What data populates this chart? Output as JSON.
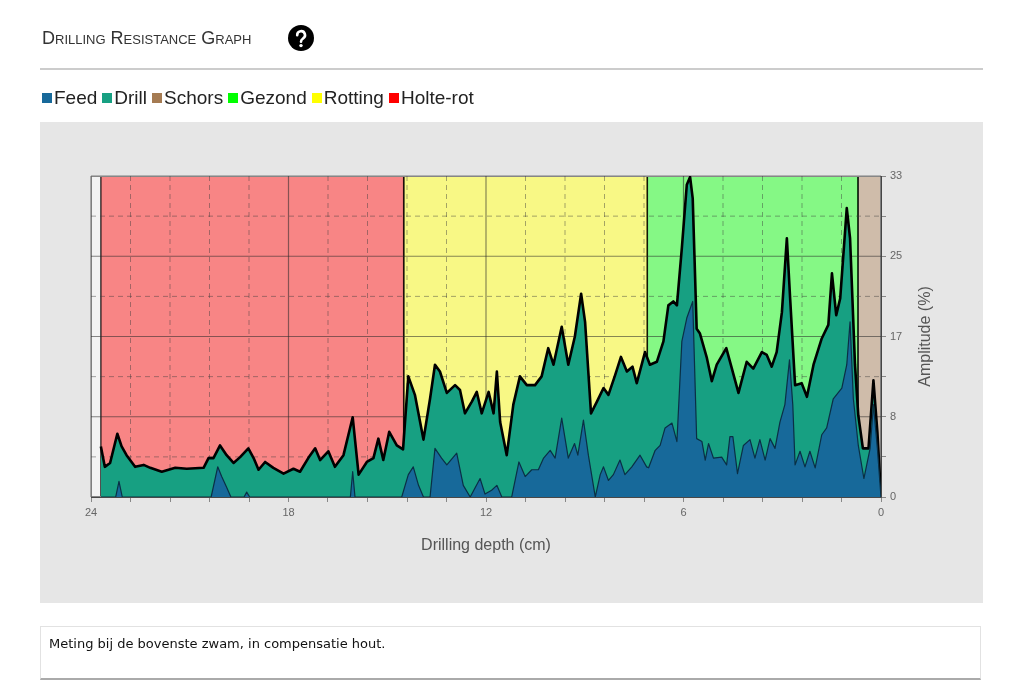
{
  "chart_data": {
    "type": "area",
    "title": "Drilling Resistance Graph",
    "xlabel": "Drilling depth (cm)",
    "ylabel": "Amplitude (%)",
    "annotations": [
      "Meting bij de bovenste zwam, in compensatie hout."
    ],
    "xlim": [
      24,
      0
    ],
    "xticks": [
      24,
      {
        "value": 22.8,
        "label": null
      },
      {
        "value": 21.6,
        "label": null
      },
      {
        "value": 20.4,
        "label": null
      },
      {
        "value": 19.2,
        "label": null
      },
      18,
      {
        "value": 16.8,
        "label": null
      },
      {
        "value": 15.6,
        "label": null
      },
      {
        "value": 14.4,
        "label": null
      },
      {
        "value": 13.2,
        "label": null
      },
      12,
      {
        "value": 10.8,
        "label": null
      },
      {
        "value": 9.6,
        "label": null
      },
      {
        "value": 8.4,
        "label": null
      },
      {
        "value": 7.2,
        "label": null
      },
      6,
      {
        "value": 4.8,
        "label": null
      },
      {
        "value": 3.6,
        "label": null
      },
      {
        "value": 2.4,
        "label": null
      },
      {
        "value": 1.2,
        "label": null
      },
      0
    ],
    "ylim": [
      0,
      33
    ],
    "yticks": [
      0,
      {
        "value": 4.125,
        "label": null
      },
      {
        "value": 8.25,
        "label": "8"
      },
      {
        "value": 12.375,
        "label": null
      },
      {
        "value": 16.5,
        "label": "17"
      },
      {
        "value": 20.625,
        "label": null
      },
      {
        "value": 24.75,
        "label": "25"
      },
      {
        "value": 28.875,
        "label": null
      },
      33
    ],
    "grid": true,
    "legend": "top",
    "series": [
      {
        "name": "Feed",
        "color": "#17699a",
        "x": [
          23.7,
          23.25,
          23.15,
          23.05,
          20.35,
          20.15,
          20.03,
          19.88,
          19.75,
          19.35,
          19.27,
          19.18,
          16.12,
          16.05,
          15.98,
          14.56,
          14.36,
          14.21,
          14.05,
          13.9,
          13.7,
          13.55,
          13.35,
          13.19,
          12.89,
          12.69,
          12.48,
          12.18,
          12.03,
          11.83,
          11.67,
          11.52,
          11.22,
          11.0,
          10.81,
          10.61,
          10.41,
          10.25,
          10.05,
          9.9,
          9.7,
          9.5,
          9.31,
          9.21,
          9.04,
          8.89,
          8.68,
          8.53,
          8.43,
          8.28,
          8.13,
          7.93,
          7.78,
          7.57,
          7.32,
          7.12,
          7.06,
          6.86,
          6.71,
          6.56,
          6.35,
          6.2,
          6.05,
          5.9,
          5.72,
          5.6,
          5.44,
          5.34,
          5.24,
          5.09,
          4.84,
          4.69,
          4.59,
          4.5,
          4.36,
          4.18,
          3.98,
          3.83,
          3.68,
          3.52,
          3.37,
          3.22,
          3.07,
          2.92,
          2.78,
          2.68,
          2.61,
          2.46,
          2.31,
          2.16,
          2.0,
          1.8,
          1.65,
          1.45,
          1.19,
          1.04,
          0.94,
          0.84,
          0.69,
          0.52,
          0.33,
          0.23,
          0.11,
          0
        ],
        "values": [
          0,
          0,
          1.6,
          0,
          0,
          3.1,
          2.1,
          1.0,
          0,
          0,
          0.5,
          0,
          0,
          2.6,
          0,
          0,
          2.3,
          3.1,
          1.2,
          0,
          0,
          5.0,
          4.0,
          3.3,
          4.5,
          1.2,
          0,
          1.9,
          0.3,
          0.7,
          1.2,
          0,
          0,
          3.6,
          2.1,
          2.8,
          2.8,
          4.0,
          4.8,
          4.0,
          8.1,
          4.0,
          5.5,
          4.3,
          7.9,
          4.3,
          0,
          2.3,
          3.1,
          1.7,
          2.3,
          3.8,
          2.3,
          3.1,
          4.3,
          3.1,
          3.0,
          4.8,
          5.3,
          7.1,
          7.6,
          5.7,
          16.0,
          18.4,
          20.1,
          6.0,
          5.7,
          3.8,
          5.5,
          4.0,
          4.1,
          3.3,
          6.2,
          6.2,
          2.4,
          5.3,
          5.9,
          4.0,
          5.9,
          3.8,
          6.0,
          5.0,
          7.7,
          9.5,
          14.1,
          9.5,
          3.3,
          4.7,
          3.1,
          4.7,
          3.0,
          6.4,
          7.1,
          10.1,
          11.2,
          13.6,
          18.0,
          10.1,
          5.3,
          1.9,
          5.0,
          9.5,
          5.0,
          0
        ]
      },
      {
        "name": "Drill",
        "color": "#17a082",
        "x": [
          23.7,
          23.58,
          23.42,
          23.2,
          23.07,
          22.92,
          22.66,
          22.4,
          22.2,
          21.85,
          21.44,
          21.09,
          20.58,
          20.43,
          20.28,
          20.08,
          19.88,
          19.67,
          19.47,
          19.22,
          19.06,
          18.91,
          18.71,
          18.46,
          18.15,
          17.85,
          17.65,
          17.4,
          17.19,
          17.04,
          16.79,
          16.59,
          16.33,
          16.05,
          15.87,
          15.62,
          15.42,
          15.27,
          15.12,
          14.94,
          14.71,
          14.52,
          14.36,
          14.16,
          13.9,
          13.7,
          13.55,
          13.4,
          13.19,
          12.94,
          12.79,
          12.64,
          12.43,
          12.28,
          12.13,
          11.92,
          11.77,
          11.67,
          11.57,
          11.37,
          11.17,
          10.97,
          10.76,
          10.51,
          10.31,
          10.11,
          9.95,
          9.7,
          9.5,
          9.3,
          9.11,
          8.99,
          8.81,
          8.63,
          8.43,
          8.28,
          8.08,
          7.9,
          7.72,
          7.55,
          7.42,
          7.17,
          7.02,
          6.81,
          6.61,
          6.46,
          6.31,
          6.2,
          6.05,
          5.9,
          5.8,
          5.72,
          5.6,
          5.5,
          5.29,
          5.14,
          4.99,
          4.7,
          4.53,
          4.33,
          4.08,
          3.88,
          3.62,
          3.47,
          3.32,
          3.17,
          3.01,
          2.86,
          2.76,
          2.61,
          2.41,
          2.25,
          2.05,
          1.8,
          1.6,
          1.49,
          1.36,
          1.24,
          1.04,
          0.94,
          0.79,
          0.69,
          0.55,
          0.38,
          0.23,
          0.11,
          0
        ],
        "values": [
          5.2,
          3.1,
          3.5,
          6.5,
          5.2,
          4.3,
          3.1,
          3.3,
          3.0,
          2.6,
          3.0,
          2.9,
          3.0,
          4.0,
          4.0,
          5.3,
          4.3,
          3.5,
          4.1,
          5.0,
          4.0,
          2.8,
          3.6,
          3.0,
          2.4,
          2.9,
          2.6,
          4.0,
          5.0,
          3.8,
          4.7,
          3.1,
          4.3,
          8.2,
          2.3,
          3.6,
          4.0,
          6.0,
          3.8,
          6.7,
          5.3,
          4.9,
          12.4,
          10.5,
          5.9,
          10.1,
          13.6,
          12.9,
          10.7,
          11.5,
          11.0,
          8.6,
          9.8,
          10.8,
          8.6,
          10.8,
          8.6,
          12.9,
          7.7,
          4.3,
          9.5,
          12.4,
          11.5,
          11.5,
          12.4,
          15.3,
          13.6,
          17.5,
          13.6,
          16.5,
          20.9,
          18.0,
          8.6,
          9.8,
          11.2,
          10.5,
          12.5,
          14.4,
          12.9,
          13.4,
          11.7,
          14.9,
          13.6,
          13.9,
          16.0,
          19.7,
          20.1,
          19.7,
          25.6,
          32.1,
          32.9,
          30.7,
          17.3,
          16.8,
          14.3,
          11.9,
          13.6,
          15.3,
          13.2,
          10.7,
          13.9,
          13.2,
          14.9,
          14.6,
          13.4,
          14.9,
          19.0,
          26.6,
          20.4,
          11.5,
          11.7,
          10.3,
          13.6,
          16.3,
          17.7,
          23.0,
          18.7,
          20.4,
          29.7,
          26.6,
          13.6,
          8.4,
          5.0,
          5.0,
          12.0,
          6.7,
          0
        ]
      }
    ],
    "bands": [
      {
        "axis": "x",
        "from": 0.7,
        "to": 0,
        "label": "Schors",
        "color": "#a57b52"
      },
      {
        "axis": "x",
        "from": 7.1,
        "to": 0.7,
        "label": "Gezond",
        "color": "#00ff00"
      },
      {
        "axis": "x",
        "from": 14.5,
        "to": 7.1,
        "label": "Rotting",
        "color": "#ffff00"
      },
      {
        "axis": "x",
        "from": 23.7,
        "to": 14.5,
        "label": "Holte-rot",
        "color": "#ff0000"
      }
    ]
  }
}
